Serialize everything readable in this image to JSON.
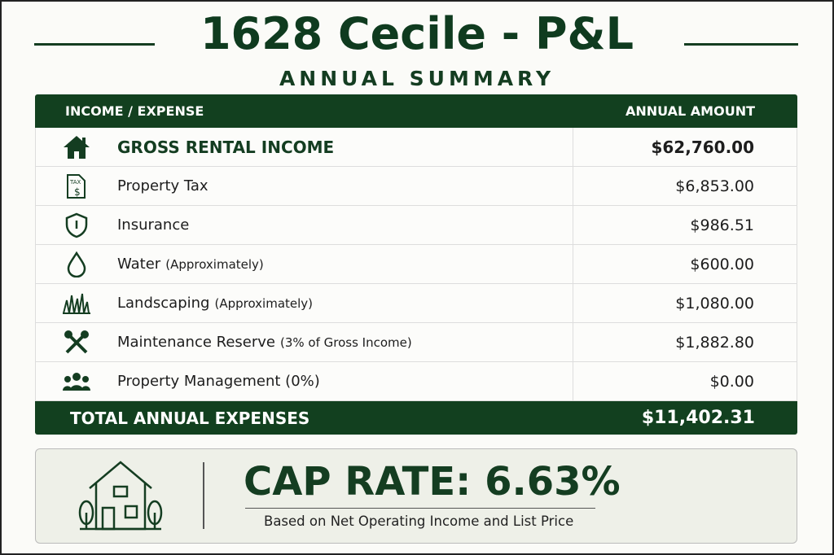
{
  "header": {
    "title": "1628 Cecile - P&L",
    "subtitle": "ANNUAL SUMMARY"
  },
  "table": {
    "columns": [
      "INCOME / EXPENSE",
      "ANNUAL AMOUNT"
    ],
    "rows": [
      {
        "label": "GROSS RENTAL INCOME",
        "amount": "$62,760.00"
      },
      {
        "label": "Property Tax",
        "amount": "$6,853.00"
      },
      {
        "label": "Insurance",
        "amount": "$986.51"
      },
      {
        "label": "Water",
        "note": "(Approximately)",
        "amount": "$600.00"
      },
      {
        "label": "Landscaping",
        "note": "(Approximately)",
        "amount": "$1,080.00"
      },
      {
        "label": "Maintenance Reserve",
        "note": "(3% of Gross Income)",
        "amount": "$1,882.80"
      },
      {
        "label": "Property Management (0%)",
        "amount": "$0.00"
      }
    ]
  },
  "total": {
    "label": "TOTAL ANNUAL EXPENSES",
    "amount": "$11,402.31"
  },
  "cap_rate": {
    "title": "CAP RATE: 6.63%",
    "caption": "Based on Net Operating Income and List Price"
  }
}
